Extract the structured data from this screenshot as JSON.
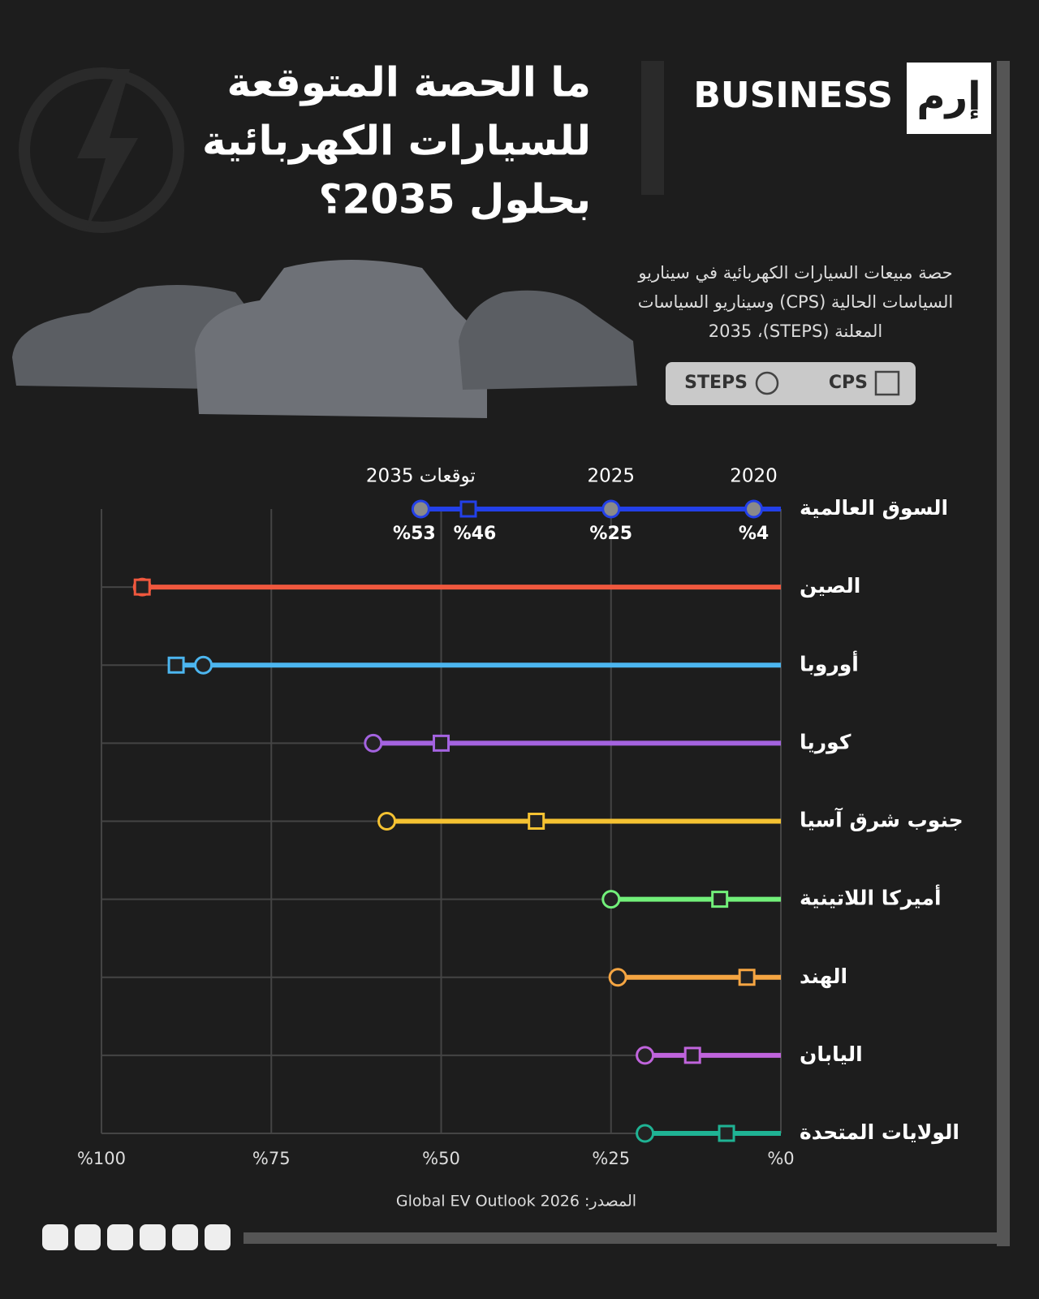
{
  "header": {
    "logo_text": "BUSINESS",
    "logo_mark": "إرم",
    "title_lines": [
      "ما الحصة المتوقعة",
      "للسيارات الكهربائية",
      "بحلول 2035؟"
    ],
    "subtitle": "حصة مبيعات السيارات الكهربائية في سيناريو السياسات الحالية (CPS) وسيناريو السياسات المعلنة (STEPS)، 2035"
  },
  "chart_data": {
    "type": "dumbbell",
    "categories": [
      "السوق العالمية",
      "الصين",
      "أوروبا",
      "كوريا",
      "جنوب شرق آسيا",
      "أميركا اللاتينية",
      "الهند",
      "اليابان",
      "الولايات المتحدة"
    ],
    "colors": [
      "#2340e8",
      "#f0583e",
      "#4cb6f0",
      "#a463e0",
      "#f5c232",
      "#72f07a",
      "#f5a542",
      "#c064dc",
      "#1fb394"
    ],
    "series": [
      {
        "name": "STEPS",
        "marker": "circle",
        "values": [
          53,
          94,
          85,
          60,
          58,
          25,
          24,
          20,
          20
        ],
        "value_labels": [
          "%53",
          null,
          null,
          null,
          null,
          null,
          null,
          null,
          null
        ]
      },
      {
        "name": "CPS",
        "marker": "square",
        "values": [
          46,
          94,
          89,
          50,
          36,
          9,
          5,
          13,
          8
        ],
        "value_labels": [
          "%46",
          null,
          null,
          null,
          null,
          null,
          null,
          null,
          null
        ]
      }
    ],
    "history": {
      "labels": [
        "2020",
        "2025"
      ],
      "values": [
        4,
        25
      ],
      "value_labels": [
        "%4",
        "%25"
      ]
    },
    "forecast_label": "توقعات 2035",
    "xlim": [
      0,
      100
    ],
    "xticks": [
      {
        "value": 0,
        "label": "%0"
      },
      {
        "value": 25,
        "label": "%25"
      },
      {
        "value": 50,
        "label": "%50"
      },
      {
        "value": 75,
        "label": "%75"
      },
      {
        "value": 100,
        "label": "%100"
      }
    ],
    "reversed": true,
    "grid": true,
    "source": "المصدر: Global EV Outlook 2026"
  }
}
